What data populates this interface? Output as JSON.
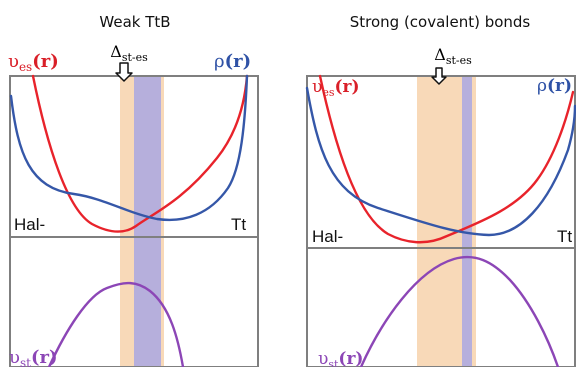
{
  "panels": [
    {
      "title": "Weak TtB",
      "delta": "Δ",
      "delta_sub": "st-es",
      "ves_main": "υ",
      "ves_sub": "es",
      "ves_arg": "(r)",
      "rho_main": "ρ",
      "rho_arg": "(r)",
      "left_label": "Hal-",
      "right_label": "Tt",
      "vst_main": "υ",
      "vst_sub": "st",
      "vst_arg": "(r)"
    },
    {
      "title": "Strong (covalent) bonds",
      "delta": "Δ",
      "delta_sub": "st-es",
      "ves_main": "υ",
      "ves_sub": "es",
      "ves_arg": "(r)",
      "rho_main": "ρ",
      "rho_arg": "(r)",
      "left_label": "Hal-",
      "right_label": "Tt",
      "vst_main": "υ",
      "vst_sub": "st",
      "vst_arg": "(r)"
    }
  ],
  "colors": {
    "frame": "#7f7f7f",
    "orange_band": "#f8d9b8",
    "purple_band": "#b6afdc",
    "red_curve": "#e8232b",
    "blue_curve": "#3557a8",
    "purple_curve": "#8c46b6",
    "red_text": "#d91f28",
    "blue_text": "#2f52a6",
    "purple_text": "#8c46b6"
  }
}
